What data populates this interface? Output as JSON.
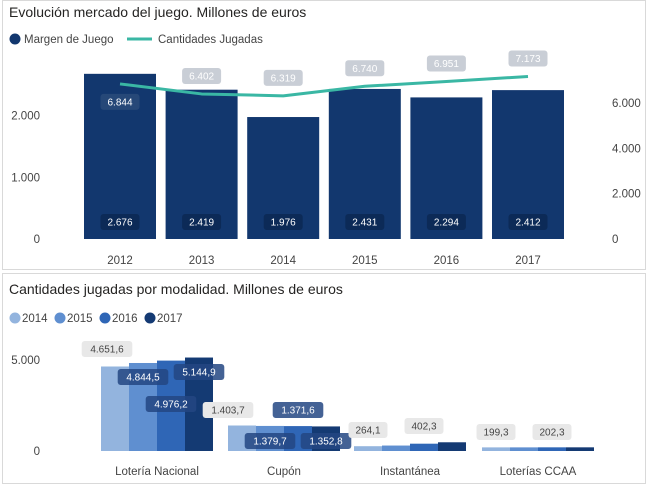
{
  "chart_data": [
    {
      "type": "bar",
      "title": "Evolución mercado del juego. Millones de euros",
      "categories": [
        "2012",
        "2013",
        "2014",
        "2015",
        "2016",
        "2017"
      ],
      "series": [
        {
          "name": "Margen de Juego",
          "type": "bar",
          "axis": "left",
          "values": [
            2676,
            2419,
            1976,
            2431,
            2294,
            2412
          ],
          "labels": [
            "2.676",
            "2.419",
            "1.976",
            "2.431",
            "2.294",
            "2.412"
          ]
        },
        {
          "name": "Cantidades Jugadas",
          "type": "line",
          "axis": "right",
          "values": [
            6844,
            6402,
            6319,
            6740,
            6951,
            7173
          ],
          "labels": [
            "6.844",
            "6.402",
            "6.319",
            "6.740",
            "6.951",
            "7.173"
          ]
        }
      ],
      "y_left": {
        "ticks": [
          "0",
          "1.000",
          "2.000"
        ],
        "lim": [
          0,
          2900
        ]
      },
      "y_right": {
        "ticks": [
          "0",
          "2.000",
          "4.000",
          "6.000"
        ],
        "lim": [
          0,
          7900
        ]
      },
      "legend_position": "top-left",
      "colors": {
        "bar": "#12376e",
        "line": "#3ab7a4"
      }
    },
    {
      "type": "bar",
      "title": "Cantidades jugadas por modalidad. Millones de euros",
      "categories": [
        "Lotería Nacional",
        "Cupón",
        "Instantánea",
        "Loterías CCAA"
      ],
      "series": [
        {
          "name": "2014",
          "color": "#93b4de",
          "values": [
            4651.6,
            1403.7,
            264.1,
            199.3
          ],
          "labels": [
            "4.651,6",
            "1.403,7",
            "264,1",
            "199,3"
          ]
        },
        {
          "name": "2015",
          "color": "#5f8fd0",
          "values": [
            4844.5,
            1379.7,
            300,
            200
          ],
          "labels": [
            "4.844,5",
            "1.379,7",
            "",
            ""
          ]
        },
        {
          "name": "2016",
          "color": "#2f66b6",
          "values": [
            4976.2,
            1371.6,
            402.3,
            202.3
          ],
          "labels": [
            "4.976,2",
            "1.371,6",
            "402,3",
            "202,3"
          ]
        },
        {
          "name": "2017",
          "color": "#143a73",
          "values": [
            5144.9,
            1352.8,
            480,
            202
          ],
          "labels": [
            "5.144,9",
            "1.352,8",
            "",
            ""
          ]
        }
      ],
      "y_ticks": [
        "0",
        "5.000"
      ],
      "ylim": [
        0,
        6000
      ],
      "legend_position": "top-left"
    }
  ]
}
